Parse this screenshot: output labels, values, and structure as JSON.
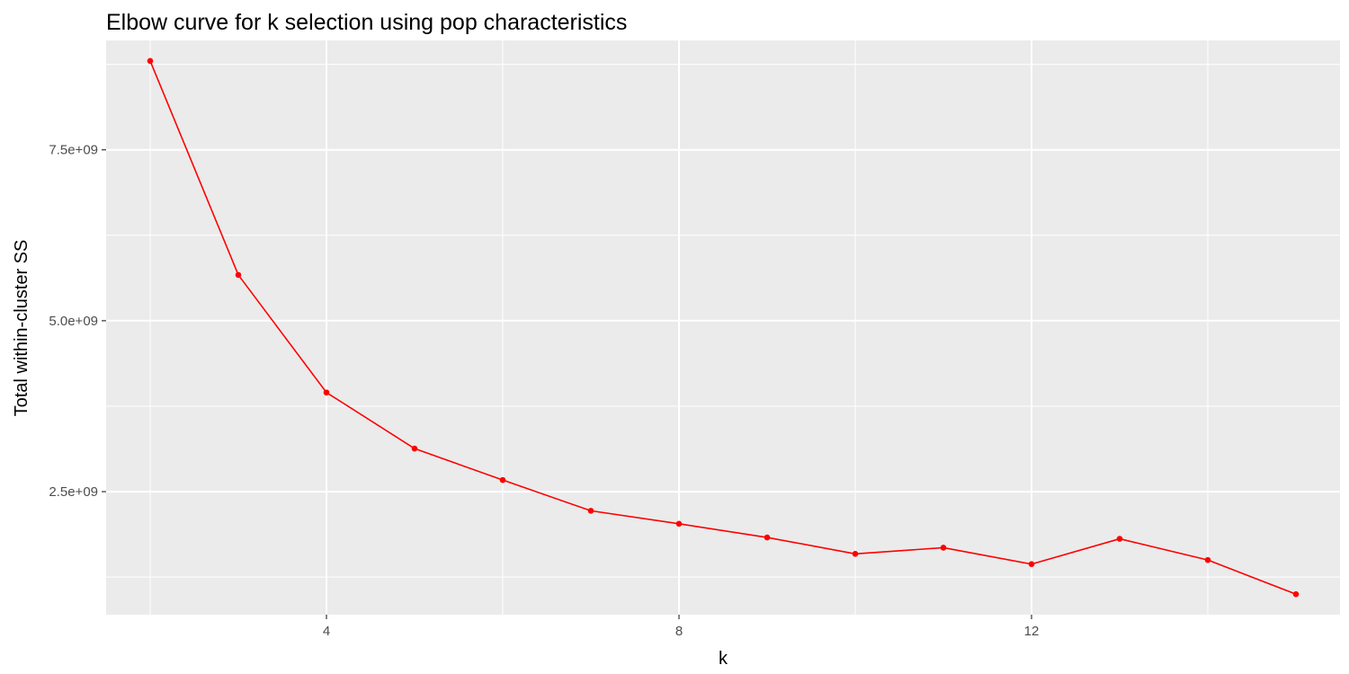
{
  "chart_data": {
    "type": "line",
    "title": "Elbow curve for k selection using pop characteristics",
    "xlabel": "k",
    "ylabel": "Total within-cluster SS",
    "x": [
      2,
      3,
      4,
      5,
      6,
      7,
      8,
      9,
      10,
      11,
      12,
      13,
      14,
      15
    ],
    "series": [
      {
        "values": [
          8800000000,
          5670000000,
          3950000000,
          3130000000,
          2670000000,
          2220000000,
          2030000000,
          1830000000,
          1590000000,
          1680000000,
          1440000000,
          1810000000,
          1500000000,
          1000000000
        ],
        "color": "#ff0000"
      }
    ],
    "xlim": [
      1.5,
      15.5
    ],
    "ylim": [
      700000000,
      9100000000
    ],
    "x_ticks": [
      4,
      8,
      12
    ],
    "x_tick_labels": [
      "4",
      "8",
      "12"
    ],
    "x_minor_ticks": [
      2,
      6,
      10,
      14
    ],
    "y_ticks": [
      2500000000,
      5000000000,
      7500000000
    ],
    "y_tick_labels": [
      "2.5e+09",
      "5.0e+09",
      "7.5e+09"
    ],
    "y_minor_ticks": [
      1250000000,
      3750000000,
      6250000000,
      8750000000
    ],
    "grid": true,
    "panel_background": "#ebebeb",
    "grid_color": "#ffffff",
    "legend": "none"
  }
}
